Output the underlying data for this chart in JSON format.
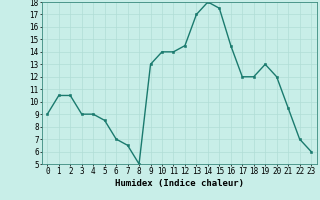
{
  "x": [
    0,
    1,
    2,
    3,
    4,
    5,
    6,
    7,
    8,
    9,
    10,
    11,
    12,
    13,
    14,
    15,
    16,
    17,
    18,
    19,
    20,
    21,
    22,
    23
  ],
  "y": [
    9.0,
    10.5,
    10.5,
    9.0,
    9.0,
    8.5,
    7.0,
    6.5,
    5.0,
    13.0,
    14.0,
    14.0,
    14.5,
    17.0,
    18.0,
    17.5,
    14.5,
    12.0,
    12.0,
    13.0,
    12.0,
    9.5,
    7.0,
    6.0
  ],
  "xlabel": "Humidex (Indice chaleur)",
  "ylim": [
    5,
    18
  ],
  "yticks": [
    5,
    6,
    7,
    8,
    9,
    10,
    11,
    12,
    13,
    14,
    15,
    16,
    17,
    18
  ],
  "xticks": [
    0,
    1,
    2,
    3,
    4,
    5,
    6,
    7,
    8,
    9,
    10,
    11,
    12,
    13,
    14,
    15,
    16,
    17,
    18,
    19,
    20,
    21,
    22,
    23
  ],
  "line_color": "#1a7a6e",
  "marker_color": "#1a7a6e",
  "bg_color": "#c8eee8",
  "grid_color": "#b0ddd6",
  "axis_bg": "#c8eee8",
  "xlabel_fontsize": 6.5,
  "tick_fontsize": 5.5,
  "line_width": 1.0,
  "marker_size": 2.0
}
